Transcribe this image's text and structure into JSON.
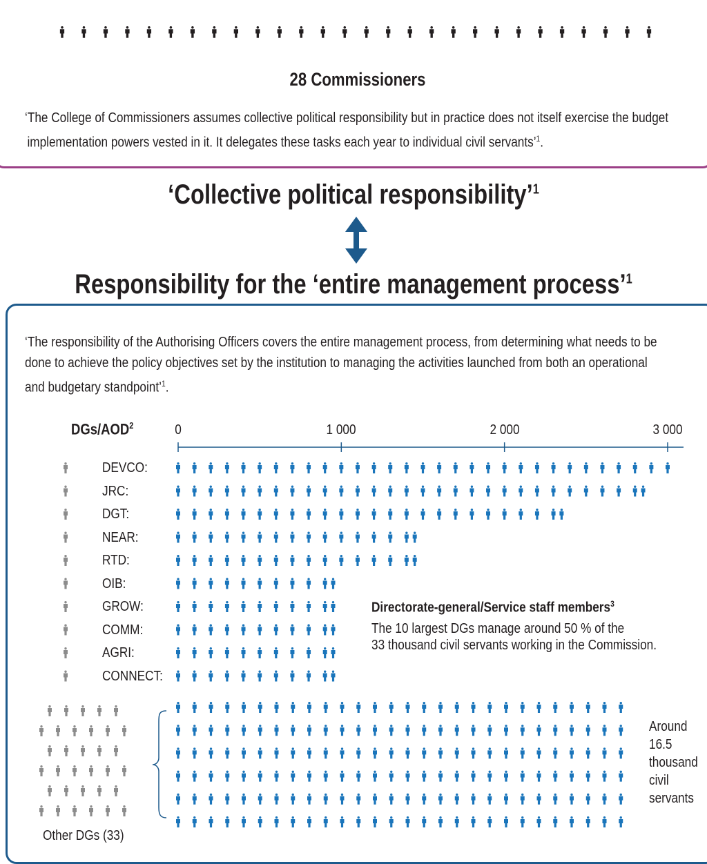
{
  "commissioners": {
    "count": 28,
    "heading": "28 Commissioners",
    "quote_line1": "‘The College of Commissioners assumes collective political responsibility but in practice does not itself exercise the budget",
    "quote_line2": "implementation powers vested in it. It delegates these tasks each year to individual civil servants’",
    "quote_sup": "1",
    "quote_end": "."
  },
  "headline_top": "‘Collective political responsibility’",
  "headline_top_sup": "1",
  "headline_bottom": "Responsibility for the ‘entire management process’",
  "headline_bottom_sup": "1",
  "management": {
    "quote_line1": "‘The responsibility of the Authorising Officers covers the entire management process, from determining what needs to be",
    "quote_line2": "done to achieve the policy objectives set by the institution to managing the activities launched from both an operational",
    "quote_line3": "and budgetary standpoint’",
    "quote_sup": "1",
    "quote_end": "."
  },
  "chart_label": "DGs/AOD",
  "chart_label_sup": "2",
  "annotation_title": "Directorate-general/Service staff members",
  "annotation_title_sup": "3",
  "annotation_line1": "The 10 largest DGs manage around 50 % of the",
  "annotation_line2": "33 thousand civil servants working in the Commission.",
  "other_dgs_label": "Other DGs (33)",
  "other_note_lines": [
    "Around",
    "16.5",
    "thousand",
    "civil",
    "servants"
  ],
  "colors": {
    "staff": "#1a75bb",
    "dg_icon": "#8c8c8c",
    "commissioner": "#231f20",
    "axis": "#1d5a8c",
    "commish_border": "#9b3f86",
    "arrow": "#1d5a8c"
  },
  "chart_data": {
    "type": "bar",
    "unit_per_icon": 50,
    "xlim": [
      0,
      3000
    ],
    "x_ticks": [
      "0",
      "1 000",
      "2 000",
      "3 000"
    ],
    "x_tick_values": [
      0,
      1000,
      2000,
      3000
    ],
    "categories": [
      "DEVCO:",
      "JRC:",
      "DGT:",
      "NEAR:",
      "RTD:",
      "OIB:",
      "GROW:",
      "COMM:",
      "AGRI:",
      "CONNECT:"
    ],
    "values": [
      3000,
      2850,
      2350,
      1450,
      1450,
      950,
      950,
      950,
      950,
      950
    ],
    "other_dgs": {
      "count": 33,
      "staff_thousand": 16.5,
      "rows": 6,
      "icons_per_row": 28
    }
  }
}
